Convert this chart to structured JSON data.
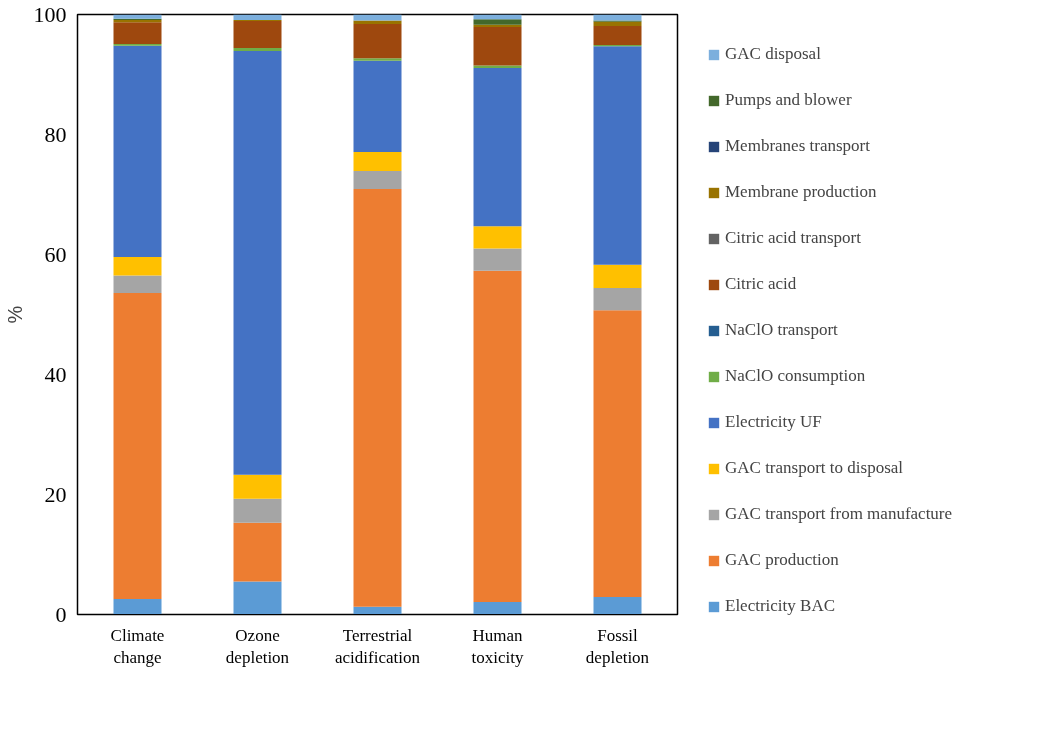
{
  "chart_data": {
    "type": "bar",
    "stacked": true,
    "ylabel": "%",
    "categories": [
      "Climate change",
      "Ozone depletion",
      "Terrestrial acidification",
      "Human toxicity",
      "Fossil depletion"
    ],
    "ylim": [
      0,
      100
    ],
    "yticks": [
      0,
      20,
      40,
      60,
      80,
      100
    ],
    "grid": false,
    "legend": "right",
    "series": [
      {
        "name": "Electricity BAC",
        "color": "#5b9bd5",
        "values": [
          2.6,
          5.5,
          1.3,
          2.1,
          2.9
        ]
      },
      {
        "name": "GAC production",
        "color": "#ed7d31",
        "values": [
          51.0,
          9.8,
          69.6,
          55.2,
          47.8
        ]
      },
      {
        "name": "GAC transport from manufacture",
        "color": "#a5a5a5",
        "values": [
          2.9,
          4.0,
          3.0,
          3.7,
          3.7
        ]
      },
      {
        "name": "GAC transport to disposal",
        "color": "#ffc000",
        "values": [
          3.1,
          4.0,
          3.2,
          3.7,
          3.9
        ]
      },
      {
        "name": "Electricity UF",
        "color": "#4472c4",
        "values": [
          35.2,
          70.6,
          15.2,
          26.4,
          36.4
        ]
      },
      {
        "name": "NaClO consumption",
        "color": "#70ad47",
        "values": [
          0.3,
          0.5,
          0.4,
          0.4,
          0.2
        ]
      },
      {
        "name": "NaClO transport",
        "color": "#255e91",
        "values": [
          0,
          0,
          0,
          0,
          0
        ]
      },
      {
        "name": "Citric acid",
        "color": "#9e480e",
        "values": [
          3.6,
          4.5,
          5.7,
          6.4,
          3.2
        ]
      },
      {
        "name": "Citric acid transport",
        "color": "#636363",
        "values": [
          0,
          0,
          0,
          0,
          0
        ]
      },
      {
        "name": "Membrane production",
        "color": "#997300",
        "values": [
          0.4,
          0.2,
          0.6,
          0.4,
          0.7
        ]
      },
      {
        "name": "Membranes transport",
        "color": "#264478",
        "values": [
          0,
          0,
          0,
          0,
          0
        ]
      },
      {
        "name": "Pumps and blower",
        "color": "#43682b",
        "values": [
          0.2,
          0,
          0,
          0.9,
          0.2
        ]
      },
      {
        "name": "GAC disposal",
        "color": "#7cafdd",
        "values": [
          0.7,
          0.9,
          1.0,
          0.8,
          1.1
        ]
      }
    ]
  }
}
